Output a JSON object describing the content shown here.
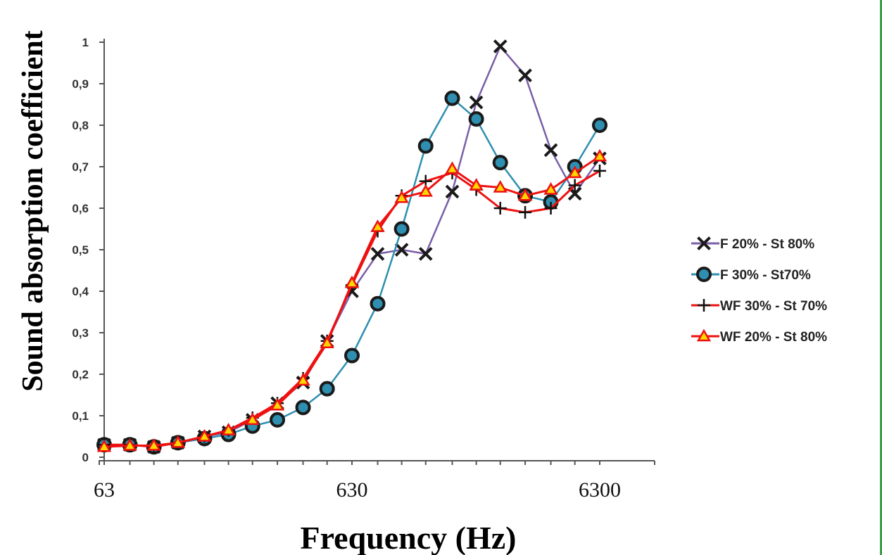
{
  "chart_data": {
    "type": "line",
    "title": "",
    "xlabel": "Frequency (Hz)",
    "ylabel": "Sound absorption coefficient",
    "x_scale": "log",
    "x_range": [
      63,
      6300
    ],
    "xticks": [
      "63",
      "630",
      "6300"
    ],
    "ylim": [
      0,
      1
    ],
    "yticks": [
      "0",
      "0,1",
      "0,2",
      "0,3",
      "0,4",
      "0,5",
      "0,6",
      "0,7",
      "0,8",
      "0,9",
      "1"
    ],
    "x": [
      63,
      80,
      100,
      125,
      160,
      200,
      250,
      315,
      400,
      500,
      630,
      800,
      1000,
      1250,
      1600,
      2000,
      2500,
      3150,
      4000,
      5000,
      6300
    ],
    "grid": false,
    "legend_position": "right",
    "series": [
      {
        "name": "F 20% - St 80%",
        "marker": "x",
        "line_color": "#7b5ea7",
        "marker_color": "#1a1a1a",
        "values": [
          0.03,
          0.03,
          0.025,
          0.035,
          0.05,
          0.06,
          0.09,
          0.13,
          0.18,
          0.28,
          0.4,
          0.49,
          0.5,
          0.49,
          0.64,
          0.855,
          0.99,
          0.92,
          0.74,
          0.635,
          0.72
        ]
      },
      {
        "name": "F 30% - St70%",
        "marker": "circle",
        "line_color": "#2e8fb0",
        "marker_color": "#1a1a1a",
        "marker_fill": "#2e8fb0",
        "values": [
          0.03,
          0.03,
          0.025,
          0.035,
          0.045,
          0.055,
          0.075,
          0.09,
          0.12,
          0.165,
          0.245,
          0.37,
          0.55,
          0.75,
          0.865,
          0.815,
          0.71,
          0.63,
          0.615,
          0.7,
          0.8
        ]
      },
      {
        "name": "WF 30% - St 70%",
        "marker": "plus",
        "line_color": "#ee1111",
        "marker_color": "#111111",
        "values": [
          0.03,
          0.03,
          0.025,
          0.035,
          0.05,
          0.065,
          0.095,
          0.13,
          0.19,
          0.28,
          0.415,
          0.545,
          0.63,
          0.665,
          0.685,
          0.645,
          0.6,
          0.59,
          0.6,
          0.655,
          0.69
        ]
      },
      {
        "name": "WF 20% - St 80%",
        "marker": "triangle",
        "line_color": "#ee1111",
        "marker_color": "#ee1111",
        "marker_fill": "#ffd700",
        "values": [
          0.025,
          0.028,
          0.028,
          0.035,
          0.05,
          0.065,
          0.09,
          0.125,
          0.185,
          0.275,
          0.42,
          0.555,
          0.625,
          0.64,
          0.695,
          0.655,
          0.65,
          0.63,
          0.645,
          0.685,
          0.725
        ]
      }
    ]
  }
}
